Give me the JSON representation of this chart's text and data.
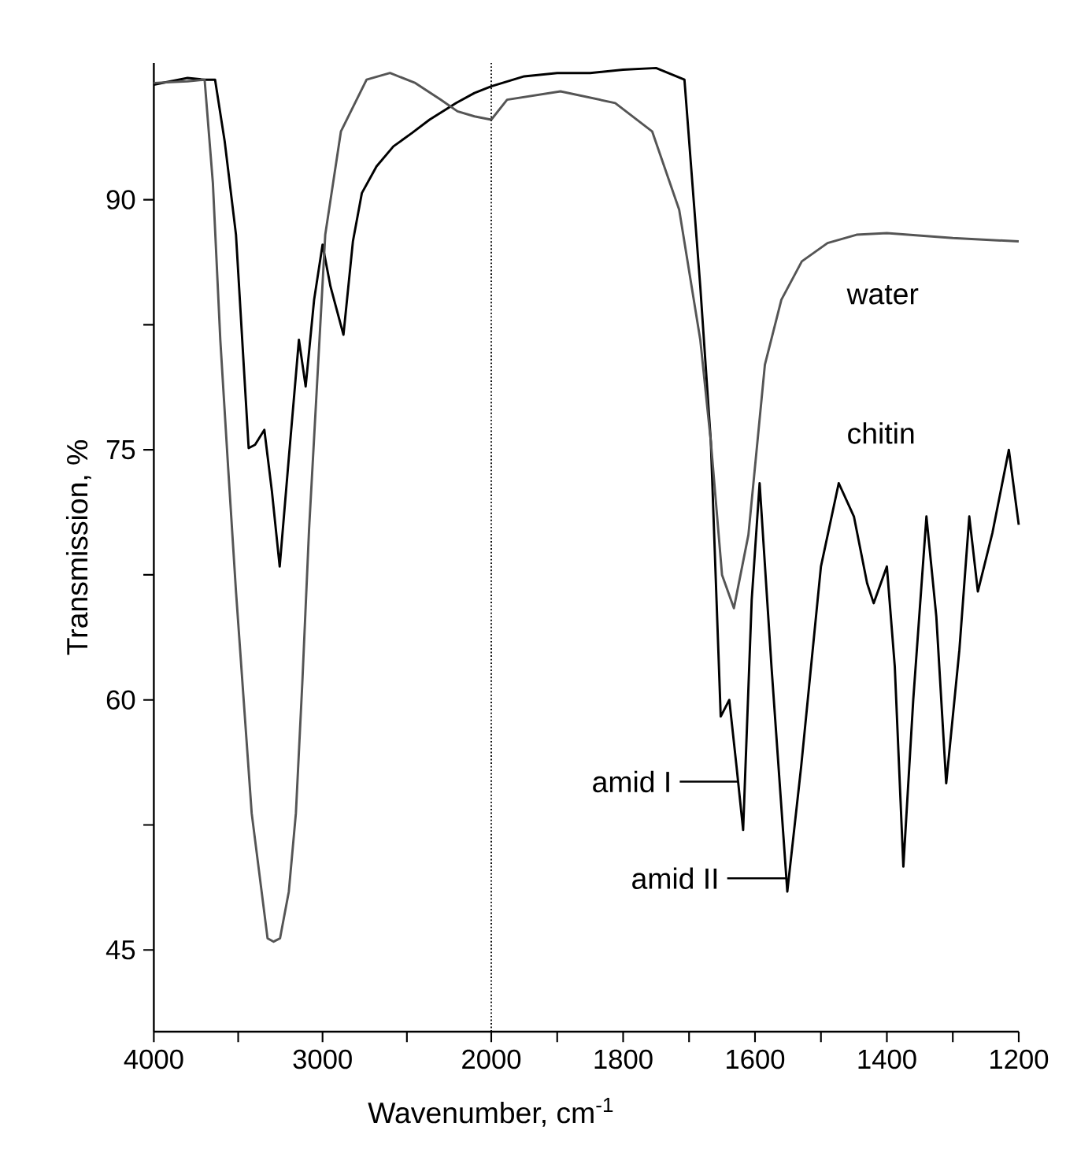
{
  "chart_data": [
    {
      "type": "line",
      "xlabel": "Wavenumber, cm$^{-1}$",
      "ylabel": "Transmission, %",
      "xlim": [
        4000,
        2000
      ],
      "ylim": [
        40.1,
        98.2
      ],
      "xticks": [
        4000,
        {
          "value": 3500,
          "label": null
        },
        3000,
        {
          "value": 2500,
          "label": null
        },
        2000
      ],
      "yticks": [
        45,
        {
          "value": 52.5,
          "label": null
        },
        60,
        {
          "value": 67.5,
          "label": null
        },
        75,
        {
          "value": 82.5,
          "label": null
        },
        90
      ],
      "series": [
        {
          "color": "#000000",
          "x": [
            4000,
            3900,
            3800,
            3700,
            3637,
            3580,
            3513,
            3438,
            3400,
            3345,
            3300,
            3254,
            3200,
            3140,
            3100,
            3050,
            3000,
            2953,
            2876,
            2820,
            2767,
            2680,
            2580,
            2470,
            2366,
            2208,
            2100,
            2000
          ],
          "values": [
            96.9,
            97.1,
            97.3,
            97.2,
            97.2,
            93.5,
            87.9,
            75.1,
            75.3,
            76.2,
            72.5,
            68.0,
            74.5,
            81.6,
            78.8,
            84.0,
            87.3,
            84.8,
            81.9,
            87.5,
            90.4,
            92.0,
            93.2,
            94.0,
            94.8,
            95.8,
            96.4,
            96.8
          ]
        },
        {
          "color": "#555555",
          "x": [
            4000,
            3800,
            3699,
            3650,
            3606,
            3560,
            3513,
            3420,
            3326,
            3290,
            3252,
            3200,
            3158,
            3120,
            3080,
            2984,
            2891,
            2739,
            2600,
            2450,
            2300,
            2200,
            2100,
            2000
          ],
          "values": [
            97.0,
            97.1,
            97.2,
            91.0,
            81.6,
            74.0,
            66.5,
            53.2,
            45.7,
            45.5,
            45.7,
            48.5,
            53.2,
            61.0,
            70.2,
            87.9,
            94.1,
            97.2,
            97.6,
            97.0,
            96.0,
            95.3,
            95.0,
            94.8
          ]
        }
      ]
    },
    {
      "type": "line",
      "xlim": [
        2000,
        1200
      ],
      "ylim": [
        40.1,
        98.2
      ],
      "tick_labels": "x",
      "xticks": [
        {
          "value": 1900,
          "label": null
        },
        1800,
        {
          "value": 1700,
          "label": null
        },
        1600,
        {
          "value": 1500,
          "label": null
        },
        1400,
        {
          "value": 1300,
          "label": null
        },
        1200
      ],
      "ref_lines": [
        {
          "axis": "x",
          "value": 2000,
          "line_style": "dotted"
        }
      ],
      "annotations": [
        {
          "text": "amid I",
          "x": 1625,
          "y": 55.1
        },
        {
          "text": "amid II",
          "x": 1553,
          "y": 49.3
        }
      ],
      "series": [
        {
          "name": "chitin",
          "color": "#000000",
          "x": [
            2000,
            1950,
            1900,
            1850,
            1800,
            1750,
            1707,
            1683,
            1667,
            1652,
            1639,
            1628,
            1618,
            1605,
            1593,
            1575,
            1551,
            1530,
            1500,
            1473,
            1450,
            1430,
            1420,
            1400,
            1388,
            1375,
            1360,
            1340,
            1325,
            1310,
            1290,
            1275,
            1262,
            1240,
            1215,
            1200
          ],
          "values": [
            96.8,
            97.4,
            97.6,
            97.6,
            97.8,
            97.9,
            97.2,
            84.8,
            75.5,
            59.0,
            60.0,
            56.0,
            52.2,
            66.0,
            73.0,
            62.0,
            48.5,
            56.0,
            68.0,
            73.0,
            71.0,
            67.0,
            65.8,
            68.0,
            62.0,
            50.0,
            60.0,
            71.0,
            65.0,
            55.0,
            63.0,
            71.0,
            66.5,
            70.0,
            75.0,
            70.5
          ]
        },
        {
          "name": "water",
          "color": "#555555",
          "x": [
            2000,
            1976,
            1895,
            1812,
            1756,
            1715,
            1683,
            1667,
            1650,
            1632,
            1610,
            1585,
            1560,
            1529,
            1490,
            1446,
            1400,
            1300,
            1200
          ],
          "values": [
            94.8,
            96.0,
            96.5,
            95.8,
            94.1,
            89.4,
            81.6,
            75.5,
            67.5,
            65.5,
            69.9,
            80.1,
            84.0,
            86.3,
            87.4,
            87.9,
            88.0,
            87.7,
            87.5
          ]
        }
      ]
    }
  ]
}
